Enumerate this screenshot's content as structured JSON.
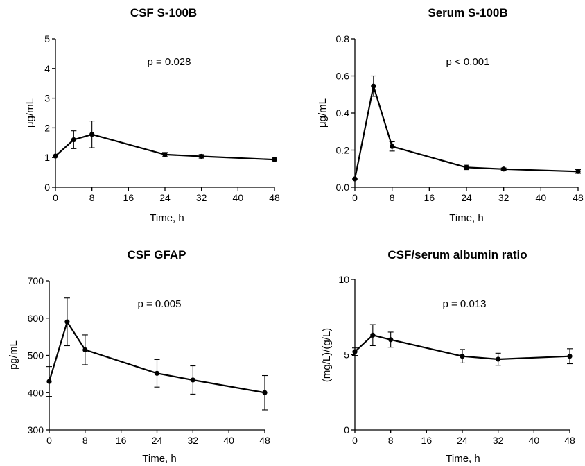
{
  "chart_data": [
    {
      "type": "line",
      "title": "CSF S-100B",
      "xlabel": "Time, h",
      "ylabel": "μg/mL",
      "annotation": "p = 0.028",
      "xlim": [
        0,
        48
      ],
      "ylim": [
        0,
        5
      ],
      "xticks": [
        0,
        8,
        16,
        24,
        32,
        40,
        48
      ],
      "yticks": [
        0,
        1,
        2,
        3,
        4,
        5
      ],
      "ytick_labels": [
        "0",
        "1",
        "2",
        "3",
        "4",
        "5"
      ],
      "x": [
        0,
        4,
        8,
        24,
        32,
        48
      ],
      "y": [
        1.05,
        1.6,
        1.78,
        1.1,
        1.04,
        0.93
      ],
      "error": [
        0.03,
        0.3,
        0.45,
        0.07,
        0.06,
        0.07
      ],
      "grid": false
    },
    {
      "type": "line",
      "title": "Serum S-100B",
      "xlabel": "Time, h",
      "ylabel": "μg/mL",
      "annotation": "p < 0.001",
      "xlim": [
        0,
        48
      ],
      "ylim": [
        0,
        0.8
      ],
      "xticks": [
        0,
        8,
        16,
        24,
        32,
        40,
        48
      ],
      "yticks": [
        0,
        0.2,
        0.4,
        0.6,
        0.8
      ],
      "ytick_labels": [
        "0.0",
        "0.2",
        "0.4",
        "0.6",
        "0.8"
      ],
      "x": [
        0,
        4,
        8,
        24,
        32,
        48
      ],
      "y": [
        0.045,
        0.545,
        0.22,
        0.107,
        0.098,
        0.085
      ],
      "error": [
        0.004,
        0.055,
        0.025,
        0.012,
        0.006,
        0.01
      ],
      "grid": false
    },
    {
      "type": "line",
      "title": "CSF GFAP",
      "xlabel": "Time, h",
      "ylabel": "pg/mL",
      "annotation": "p = 0.005",
      "xlim": [
        0,
        48
      ],
      "ylim": [
        300,
        700
      ],
      "xticks": [
        0,
        8,
        16,
        24,
        32,
        40,
        48
      ],
      "yticks": [
        300,
        400,
        500,
        600,
        700
      ],
      "ytick_labels": [
        "300",
        "400",
        "500",
        "600",
        "700"
      ],
      "x": [
        0,
        4,
        8,
        24,
        32,
        48
      ],
      "y": [
        430,
        590,
        515,
        452,
        434,
        400
      ],
      "error": [
        40,
        64,
        40,
        37,
        38,
        46
      ],
      "grid": false
    },
    {
      "type": "line",
      "title": "CSF/serum albumin ratio",
      "xlabel": "Time, h",
      "ylabel": "(mg/L)/(g/L)",
      "annotation": "p = 0.013",
      "xlim": [
        0,
        48
      ],
      "ylim": [
        0,
        10
      ],
      "xticks": [
        0,
        8,
        16,
        24,
        32,
        40,
        48
      ],
      "yticks": [
        0,
        5,
        10
      ],
      "ytick_labels": [
        "0",
        "5",
        "10"
      ],
      "x": [
        0,
        4,
        8,
        24,
        32,
        48
      ],
      "y": [
        5.2,
        6.3,
        6.0,
        4.9,
        4.7,
        4.9
      ],
      "error": [
        0.25,
        0.7,
        0.5,
        0.45,
        0.4,
        0.5
      ],
      "grid": false
    }
  ]
}
